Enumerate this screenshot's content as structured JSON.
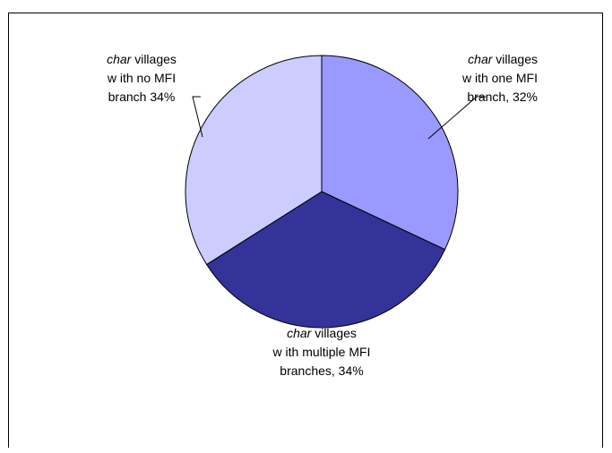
{
  "chart_data": {
    "type": "pie",
    "slices": [
      {
        "name": "char villages with one MFI branch",
        "value": 32,
        "color": "#9999ff",
        "label_lines": [
          [
            "char",
            " villages"
          ],
          [
            "w ith one MFI"
          ],
          [
            "branch, 32%"
          ]
        ]
      },
      {
        "name": "char villages with multiple MFI branches",
        "value": 34,
        "color": "#333399",
        "label_lines": [
          [
            "char",
            " villages"
          ],
          [
            "w ith multiple MFI"
          ],
          [
            "branches, 34%"
          ]
        ]
      },
      {
        "name": "char villages with no MFI branch",
        "value": 34,
        "color": "#ccccff",
        "label_lines": [
          [
            "char",
            " villages"
          ],
          [
            "w ith no MFI"
          ],
          [
            "branch 34%"
          ]
        ]
      }
    ],
    "start_angle_deg": 0,
    "direction": "clockwise",
    "slice_stroke": "#000000",
    "title": ""
  },
  "page": {
    "border_color": "#000000",
    "background": "#ffffff"
  }
}
